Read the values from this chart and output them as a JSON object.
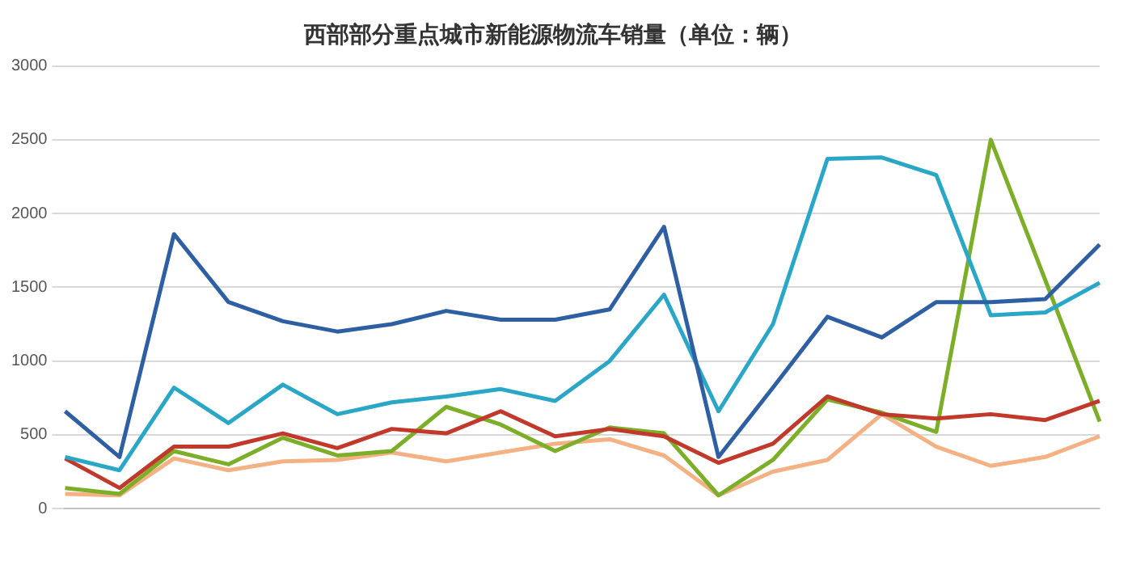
{
  "chart_data": {
    "type": "line",
    "title": "西部部分重点城市新能源物流车销量（单位：辆）",
    "categories": [
      null,
      null,
      null,
      null,
      null,
      null,
      null,
      null,
      null,
      null,
      null,
      null,
      null,
      null,
      null,
      null,
      null,
      null,
      null,
      null
    ],
    "series": [
      {
        "color": "#2e5fa3",
        "values": [
          660,
          350,
          1860,
          1400,
          1270,
          1200,
          1250,
          1340,
          1280,
          1280,
          1350,
          1910,
          350,
          820,
          1300,
          1160,
          1400,
          1400,
          1420,
          1790
        ]
      },
      {
        "color": "#2aa6c6",
        "values": [
          350,
          260,
          820,
          580,
          840,
          640,
          720,
          760,
          810,
          730,
          1000,
          1450,
          660,
          1250,
          2370,
          2380,
          2260,
          1310,
          1330,
          1530
        ]
      },
      {
        "color": "#c0392b",
        "values": [
          340,
          140,
          420,
          420,
          510,
          410,
          540,
          510,
          660,
          490,
          540,
          490,
          310,
          440,
          760,
          640,
          610,
          640,
          600,
          730
        ]
      },
      {
        "color": "#7cae2a",
        "values": [
          140,
          100,
          390,
          300,
          480,
          360,
          390,
          690,
          570,
          390,
          550,
          510,
          90,
          330,
          740,
          650,
          520,
          2500,
          1550,
          590
        ]
      },
      {
        "color": "#f4b183",
        "values": [
          100,
          90,
          340,
          260,
          320,
          330,
          380,
          320,
          380,
          440,
          470,
          360,
          90,
          250,
          330,
          640,
          420,
          290,
          350,
          490
        ]
      }
    ],
    "ylim": [
      0,
      3000
    ],
    "yticks": [
      0,
      500,
      1000,
      1500,
      2000,
      2500,
      3000
    ],
    "grid": "y",
    "legend": false,
    "marker": "none",
    "line_style": "solid"
  }
}
